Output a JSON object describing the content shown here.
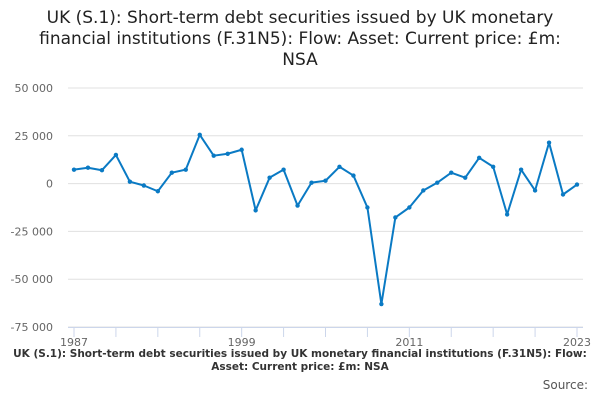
{
  "title": "UK (S.1): Short-term debt securities issued by UK monetary financial institutions (F.31N5): Flow: Asset: Current price: £m: NSA",
  "footer_title": "UK (S.1): Short-term debt securities issued by UK monetary financial institutions (F.31N5): Flow: Asset: Current price: £m: NSA",
  "source_label": "Source:",
  "colors": {
    "line": "#0a7ac4",
    "grid": "#e0e0e0",
    "axis": "#ccd6eb"
  },
  "chart_data": {
    "type": "line",
    "title": "UK (S.1): Short-term debt securities issued by UK monetary financial institutions (F.31N5): Flow: Asset: Current price: £m: NSA",
    "x": [
      1987,
      1988,
      1989,
      1990,
      1991,
      1992,
      1993,
      1994,
      1995,
      1996,
      1997,
      1998,
      1999,
      2000,
      2001,
      2002,
      2003,
      2004,
      2005,
      2006,
      2007,
      2008,
      2009,
      2010,
      2011,
      2012,
      2013,
      2014,
      2015,
      2016,
      2017,
      2018,
      2019,
      2020,
      2021,
      2022,
      2023
    ],
    "series": [
      {
        "values": [
          7300,
          8300,
          7000,
          15000,
          1000,
          -1000,
          -4000,
          5700,
          7300,
          25500,
          14600,
          15600,
          17700,
          -14000,
          3100,
          7300,
          -11500,
          500,
          1500,
          8800,
          4200,
          -12500,
          -63000,
          -17700,
          -12500,
          -3600,
          500,
          5700,
          3100,
          13500,
          8800,
          -16100,
          7300,
          -3600,
          21400,
          -5700,
          -500
        ]
      }
    ],
    "ylim": [
      -75000,
      50000
    ],
    "yticks": [
      50000,
      25000,
      0,
      -25000,
      -50000,
      -75000
    ],
    "ytick_labels": [
      "50 000",
      "25 000",
      "0",
      "-25 000",
      "-50 000",
      "-75 000"
    ],
    "xtick_labels": [
      "1987",
      "1999",
      "2011",
      "2023"
    ],
    "grid": true,
    "legend": "none"
  }
}
